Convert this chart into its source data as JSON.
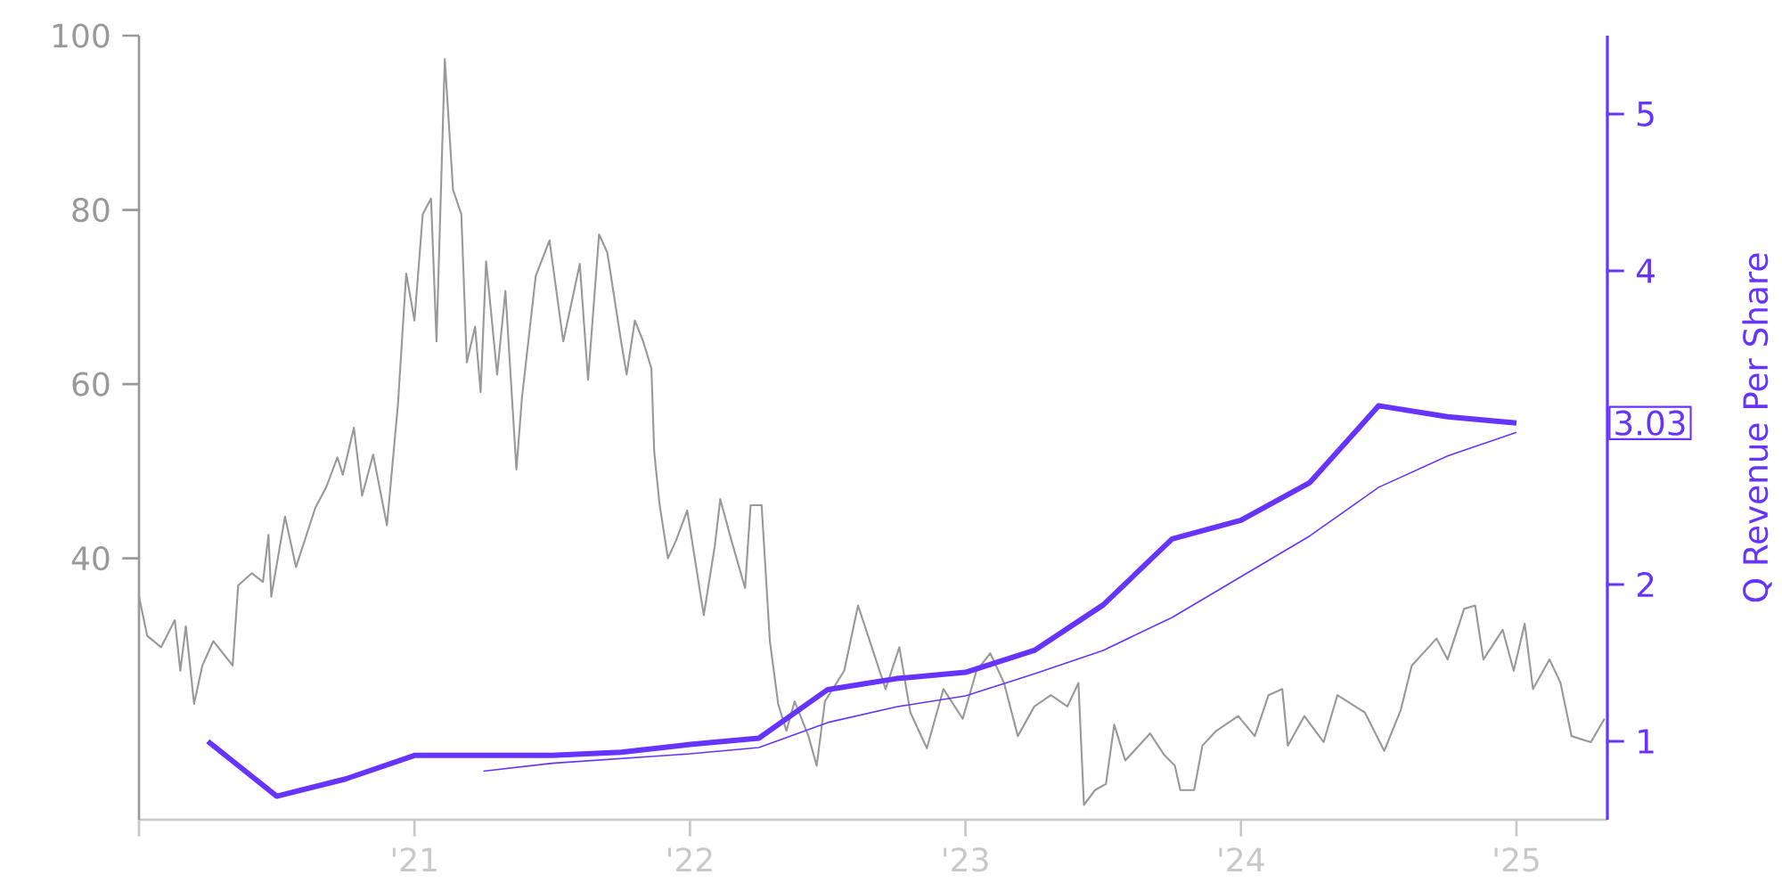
{
  "chart_data": {
    "type": "line",
    "xlim": [
      2020,
      2025.33
    ],
    "xticks": [
      {
        "value": 2020,
        "label": null
      },
      {
        "value": 2021,
        "label": "'21"
      },
      {
        "value": 2022,
        "label": "'22"
      },
      {
        "value": 2023,
        "label": "'23"
      },
      {
        "value": 2024,
        "label": "'24"
      },
      {
        "value": 2025,
        "label": "'25"
      }
    ],
    "ylim": [
      10,
      100
    ],
    "yticks": [
      40,
      60,
      80,
      100
    ],
    "y2lim": [
      0.5,
      5.5
    ],
    "y2ticks": [
      1,
      2,
      4,
      5
    ],
    "y2label": "Q Revenue Per Share",
    "annotations": [
      "3.03"
    ],
    "series": [
      {
        "color": "#999999",
        "x": [
          2020.0,
          2020.03,
          2020.08,
          2020.13,
          2020.15,
          2020.17,
          2020.2,
          2020.23,
          2020.27,
          2020.34,
          2020.36,
          2020.41,
          2020.45,
          2020.47,
          2020.48,
          2020.53,
          2020.57,
          2020.64,
          2020.68,
          2020.72,
          2020.74,
          2020.78,
          2020.81,
          2020.85,
          2020.9,
          2020.94,
          2020.97,
          2021.0,
          2021.03,
          2021.06,
          2021.08,
          2021.11,
          2021.14,
          2021.17,
          2021.19,
          2021.22,
          2021.24,
          2021.26,
          2021.3,
          2021.33,
          2021.37,
          2021.39,
          2021.44,
          2021.49,
          2021.54,
          2021.6,
          2021.63,
          2021.67,
          2021.7,
          2021.75,
          2021.77,
          2021.8,
          2021.83,
          2021.86,
          2021.87,
          2021.89,
          2021.92,
          2021.95,
          2021.99,
          2022.05,
          2022.09,
          2022.11,
          2022.15,
          2022.2,
          2022.22,
          2022.26,
          2022.29,
          2022.32,
          2022.35,
          2022.38,
          2022.43,
          2022.46,
          2022.49,
          2022.56,
          2022.61,
          2022.66,
          2022.71,
          2022.76,
          2022.8,
          2022.86,
          2022.92,
          2022.99,
          2023.04,
          2023.09,
          2023.14,
          2023.19,
          2023.25,
          2023.31,
          2023.37,
          2023.41,
          2023.43,
          2023.47,
          2023.51,
          2023.54,
          2023.58,
          2023.67,
          2023.72,
          2023.76,
          2023.78,
          2023.83,
          2023.86,
          2023.91,
          2023.99,
          2024.05,
          2024.1,
          2024.15,
          2024.17,
          2024.23,
          2024.3,
          2024.35,
          2024.45,
          2024.52,
          2024.58,
          2024.62,
          2024.71,
          2024.75,
          2024.81,
          2024.85,
          2024.88,
          2024.95,
          2024.99,
          2025.03,
          2025.06,
          2025.12,
          2025.16,
          2025.2,
          2025.27,
          2025.32
        ],
        "values": [
          35.6,
          31.1,
          29.8,
          32.9,
          27.1,
          32.2,
          23.3,
          27.7,
          30.5,
          27.7,
          36.9,
          38.3,
          37.3,
          42.7,
          35.6,
          44.8,
          39.0,
          45.8,
          48.2,
          51.6,
          49.6,
          55.0,
          47.2,
          51.9,
          43.8,
          57.7,
          72.7,
          67.3,
          79.5,
          81.3,
          64.9,
          97.3,
          82.3,
          79.5,
          62.5,
          66.6,
          59.1,
          74.1,
          61.1,
          70.7,
          50.2,
          58.4,
          72.4,
          76.5,
          64.9,
          73.8,
          60.5,
          77.2,
          75.1,
          64.9,
          61.1,
          67.3,
          64.9,
          61.8,
          52.3,
          46.1,
          40.0,
          42.1,
          45.5,
          33.5,
          41.4,
          46.8,
          42.1,
          36.6,
          46.1,
          46.1,
          30.5,
          23.3,
          20.2,
          23.6,
          19.6,
          16.2,
          23.6,
          27.1,
          34.6,
          29.8,
          25.0,
          29.8,
          22.3,
          18.2,
          25.0,
          21.6,
          27.1,
          29.1,
          25.7,
          19.6,
          23.0,
          24.3,
          23.0,
          25.7,
          11.7,
          13.4,
          14.1,
          20.9,
          16.8,
          19.9,
          17.5,
          16.2,
          13.4,
          13.4,
          18.5,
          20.2,
          21.9,
          19.6,
          24.3,
          25.0,
          18.5,
          21.9,
          18.9,
          24.3,
          22.3,
          17.9,
          22.6,
          27.7,
          30.8,
          28.4,
          34.2,
          34.6,
          28.4,
          31.8,
          27.1,
          32.5,
          25.0,
          28.4,
          25.7,
          19.6,
          18.9,
          21.6
        ]
      },
      {
        "color": "#6633ff",
        "axis": "y2",
        "x": [
          2020.25,
          2020.5,
          2020.75,
          2021.0,
          2021.5,
          2021.75,
          2022.0,
          2022.25,
          2022.5,
          2022.75,
          2023.0,
          2023.25,
          2023.5,
          2023.75,
          2024.0,
          2024.25,
          2024.5,
          2024.75,
          2025.0
        ],
        "values": [
          1.0,
          0.65,
          0.76,
          0.91,
          0.91,
          0.93,
          0.98,
          1.02,
          1.33,
          1.4,
          1.44,
          1.58,
          1.87,
          2.29,
          2.41,
          2.65,
          3.14,
          3.07,
          3.03
        ]
      },
      {
        "color": "#6633ff",
        "axis": "y2",
        "x": [
          2021.25,
          2021.5,
          2021.75,
          2022.0,
          2022.25,
          2022.5,
          2022.75,
          2023.0,
          2023.25,
          2023.5,
          2023.75,
          2024.0,
          2024.25,
          2024.5,
          2024.75,
          2025.0
        ],
        "values": [
          0.81,
          0.86,
          0.89,
          0.92,
          0.96,
          1.12,
          1.22,
          1.29,
          1.43,
          1.58,
          1.79,
          2.05,
          2.31,
          2.62,
          2.82,
          2.97
        ]
      }
    ]
  }
}
